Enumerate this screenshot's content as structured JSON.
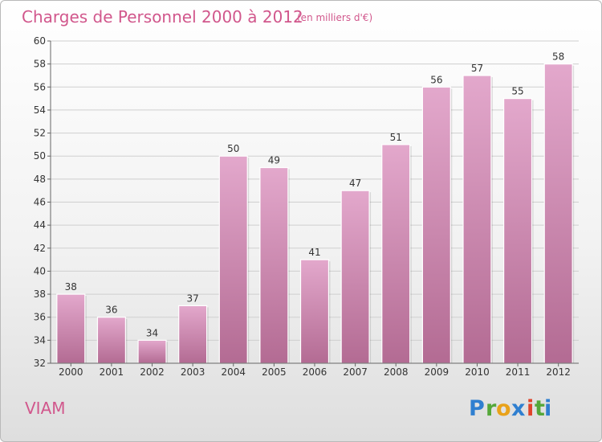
{
  "chart_data": {
    "type": "bar",
    "title": "Charges de Personnel 2000 à 2012",
    "subtitle": "(en milliers d'€)",
    "categories": [
      "2000",
      "2001",
      "2002",
      "2003",
      "2004",
      "2005",
      "2006",
      "2007",
      "2008",
      "2009",
      "2010",
      "2011",
      "2012"
    ],
    "values": [
      38,
      36,
      34,
      37,
      50,
      49,
      41,
      47,
      51,
      56,
      57,
      55,
      58
    ],
    "ylim": [
      32,
      60
    ],
    "yticks": [
      32,
      34,
      36,
      38,
      40,
      42,
      44,
      46,
      48,
      50,
      52,
      54,
      56,
      58,
      60
    ],
    "grid": true,
    "bar_color_top": "#e3a8cc",
    "bar_color_bottom": "#b36b93"
  },
  "commune": "VIAM",
  "logo": {
    "letters": [
      "P",
      "r",
      "o",
      "x",
      "i",
      "t",
      "i"
    ],
    "colors": [
      "#2f7fd0",
      "#55a83a",
      "#e9a21a",
      "#2f7fd0",
      "#e0442b",
      "#55a83a",
      "#2f7fd0"
    ]
  }
}
